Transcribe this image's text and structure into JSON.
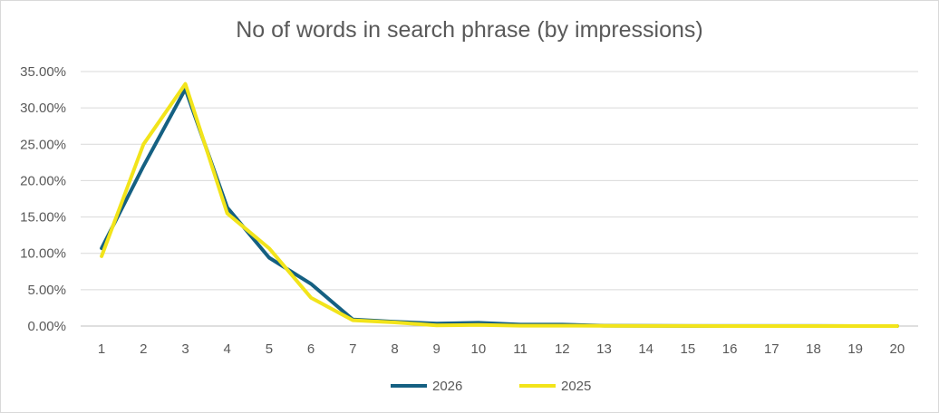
{
  "chart_data": {
    "type": "line",
    "title": "No of words in search phrase (by impressions)",
    "xlabel": "",
    "ylabel": "",
    "categories": [
      "1",
      "2",
      "3",
      "4",
      "5",
      "6",
      "7",
      "8",
      "9",
      "10",
      "11",
      "12",
      "13",
      "14",
      "15",
      "16",
      "17",
      "18",
      "19",
      "20"
    ],
    "ylim": [
      0,
      35
    ],
    "y_ticks": [
      "0.00%",
      "5.00%",
      "10.00%",
      "15.00%",
      "20.00%",
      "25.00%",
      "30.00%",
      "35.00%"
    ],
    "y_tick_values": [
      0,
      5,
      10,
      15,
      20,
      25,
      30,
      35
    ],
    "grid": true,
    "legend_position": "bottom",
    "series": [
      {
        "name": "2026",
        "color": "#156082",
        "values": [
          10.7,
          22.0,
          32.6,
          16.3,
          9.4,
          5.8,
          0.9,
          0.6,
          0.35,
          0.45,
          0.2,
          0.2,
          0.05,
          0.02,
          0.01,
          0.01,
          0.01,
          0.01,
          0.0,
          0.0
        ]
      },
      {
        "name": "2025",
        "color": "#f2e41a",
        "values": [
          9.6,
          25.0,
          33.3,
          15.5,
          10.7,
          3.9,
          0.8,
          0.5,
          0.1,
          0.15,
          0.05,
          0.05,
          0.02,
          0.01,
          0.01,
          0.0,
          0.0,
          0.0,
          0.0,
          0.0
        ]
      }
    ]
  }
}
